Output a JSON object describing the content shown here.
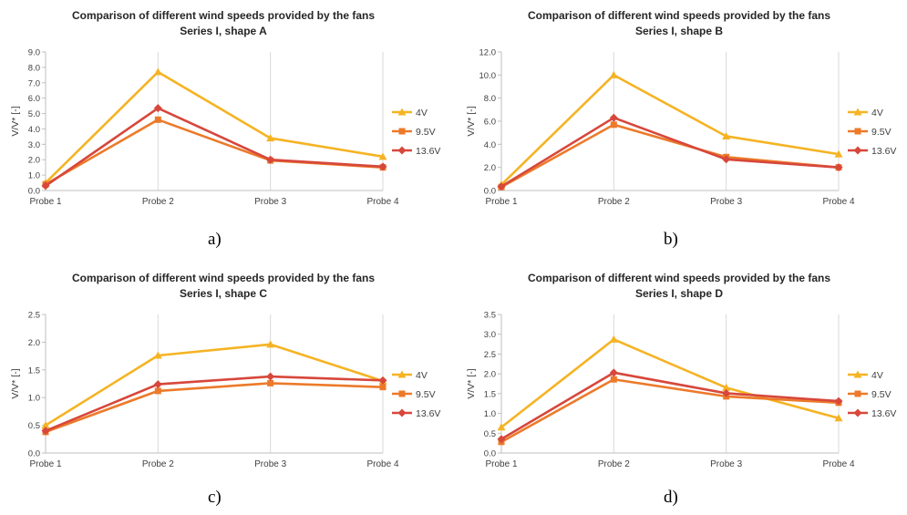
{
  "chart_data": [
    {
      "type": "line",
      "title": "Comparison of different wind speeds provided by the fans",
      "subtitle": "Series I, shape A",
      "ylabel": "V/V* [-]",
      "categories": [
        "Probe 1",
        "Probe 2",
        "Probe 3",
        "Probe 4"
      ],
      "ylim": [
        0,
        9
      ],
      "yticks": [
        "0.0",
        "1.0",
        "2.0",
        "3.0",
        "4.0",
        "5.0",
        "6.0",
        "7.0",
        "8.0",
        "9.0"
      ],
      "series": [
        {
          "name": "4V",
          "values": [
            0.5,
            7.7,
            3.4,
            2.2
          ]
        },
        {
          "name": "9.5V",
          "values": [
            0.4,
            4.6,
            1.95,
            1.5
          ]
        },
        {
          "name": "13.6V",
          "values": [
            0.3,
            5.35,
            2.0,
            1.55
          ]
        }
      ],
      "legend": "right",
      "grid": "vertical",
      "caption": "a)"
    },
    {
      "type": "line",
      "title": "Comparison of different wind speeds provided by the fans",
      "subtitle": "Series I, shape B",
      "ylabel": "V/V* [-]",
      "categories": [
        "Probe 1",
        "Probe 2",
        "Probe 3",
        "Probe 4"
      ],
      "ylim": [
        0,
        12
      ],
      "yticks": [
        "0.0",
        "2.0",
        "4.0",
        "6.0",
        "8.0",
        "10.0",
        "12.0"
      ],
      "series": [
        {
          "name": "4V",
          "values": [
            0.5,
            10.0,
            4.7,
            3.15
          ]
        },
        {
          "name": "9.5V",
          "values": [
            0.3,
            5.7,
            2.9,
            2.0
          ]
        },
        {
          "name": "13.6V",
          "values": [
            0.35,
            6.3,
            2.7,
            2.0
          ]
        }
      ],
      "legend": "right",
      "grid": "vertical",
      "caption": "b)"
    },
    {
      "type": "line",
      "title": "Comparison of different wind speeds provided by the fans",
      "subtitle": "Series I, shape C",
      "ylabel": "V/V* [-]",
      "categories": [
        "Probe 1",
        "Probe 2",
        "Probe 3",
        "Probe 4"
      ],
      "ylim": [
        0,
        2.5
      ],
      "yticks": [
        "0.0",
        "0.5",
        "1.0",
        "1.5",
        "2.0",
        "2.5"
      ],
      "series": [
        {
          "name": "4V",
          "values": [
            0.5,
            1.76,
            1.96,
            1.3
          ]
        },
        {
          "name": "9.5V",
          "values": [
            0.38,
            1.12,
            1.26,
            1.19
          ]
        },
        {
          "name": "13.6V",
          "values": [
            0.4,
            1.24,
            1.38,
            1.31
          ]
        }
      ],
      "legend": "right",
      "grid": "vertical",
      "caption": "c)"
    },
    {
      "type": "line",
      "title": "Comparison of different wind speeds provided by the fans",
      "subtitle": "Series I, shape D",
      "ylabel": "V/V* [-]",
      "categories": [
        "Probe 1",
        "Probe 2",
        "Probe 3",
        "Probe 4"
      ],
      "ylim": [
        0,
        3.5
      ],
      "yticks": [
        "0.0",
        "0.5",
        "1.0",
        "1.5",
        "2.0",
        "2.5",
        "3.0",
        "3.5"
      ],
      "series": [
        {
          "name": "4V",
          "values": [
            0.65,
            2.87,
            1.65,
            0.88
          ]
        },
        {
          "name": "9.5V",
          "values": [
            0.28,
            1.86,
            1.43,
            1.27
          ]
        },
        {
          "name": "13.6V",
          "values": [
            0.35,
            2.03,
            1.51,
            1.31
          ]
        }
      ],
      "legend": "right",
      "grid": "vertical",
      "caption": "d)"
    }
  ],
  "colors": {
    "4V": "#f5b324",
    "9.5V": "#ec7a2a",
    "13.6V": "#d7473b",
    "grid": "#d9d9d9",
    "axis": "#bfbfbf"
  },
  "markers": {
    "4V": "triangle",
    "9.5V": "square",
    "13.6V": "diamond"
  }
}
